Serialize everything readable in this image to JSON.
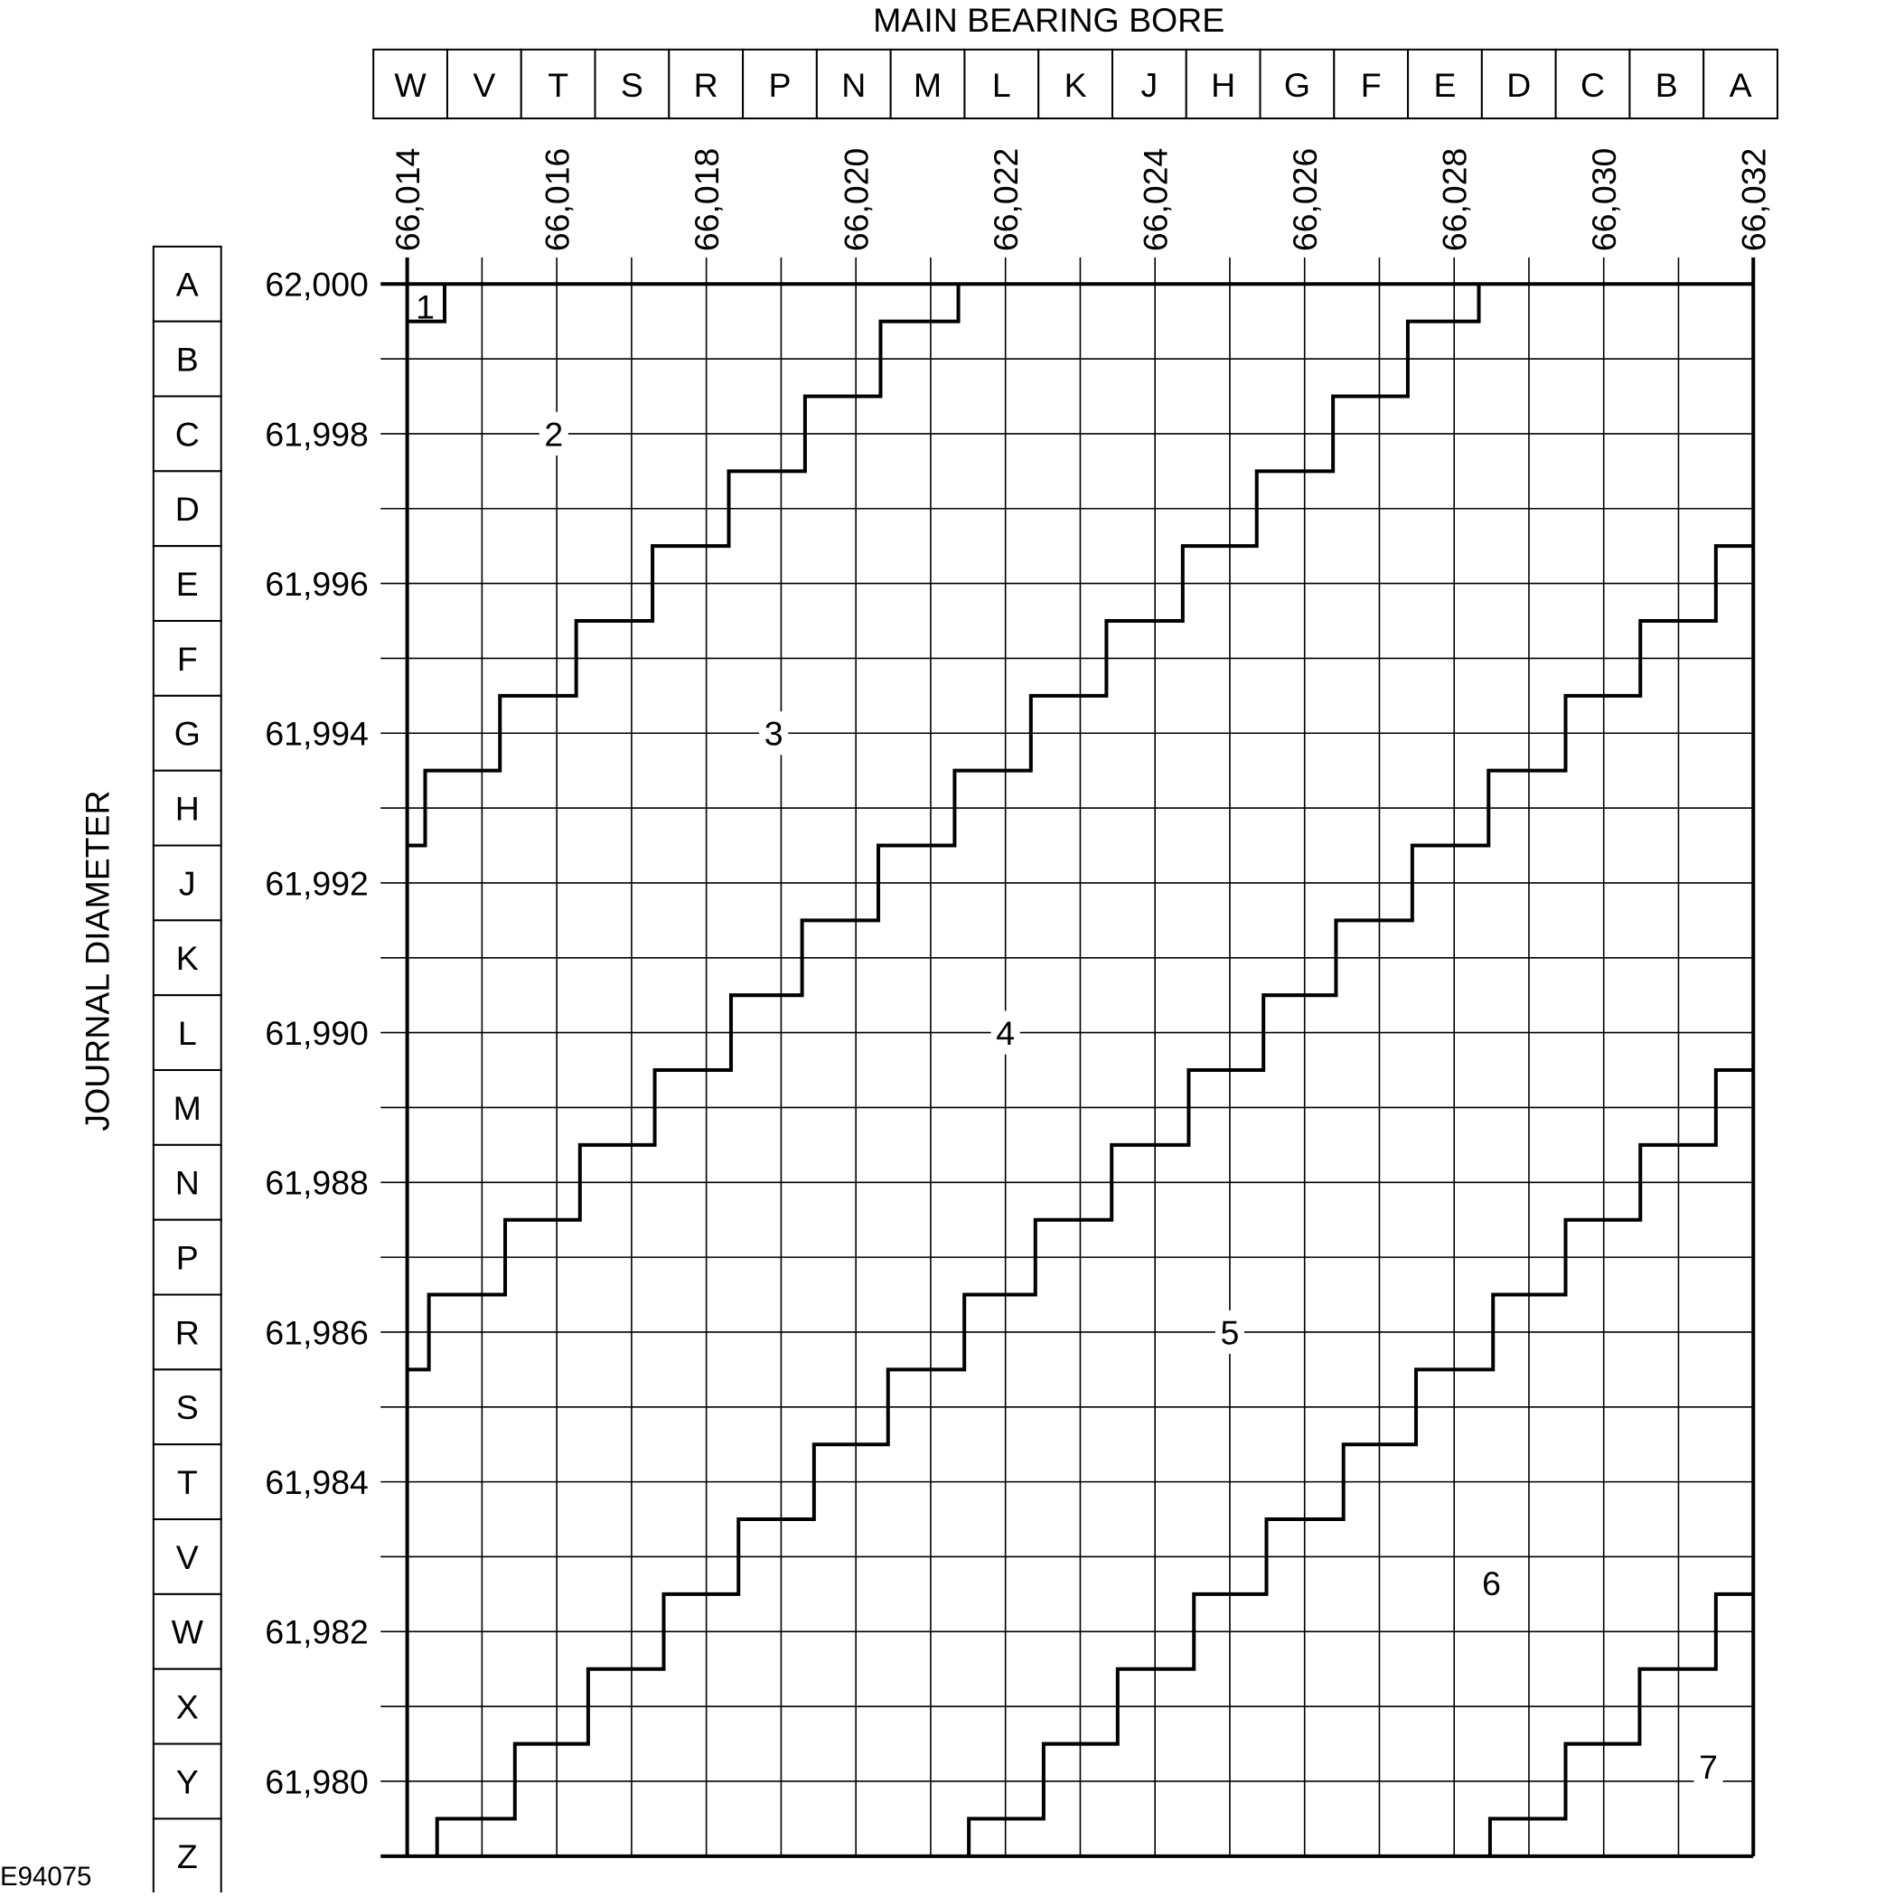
{
  "chart_data": {
    "type": "diagram",
    "title": "MAIN BEARING BORE",
    "xlabel": "MAIN BEARING BORE",
    "ylabel": "JOURNAL DIAMETER",
    "figure_id": "E94075",
    "bore_grades": [
      "W",
      "V",
      "T",
      "S",
      "R",
      "P",
      "N",
      "M",
      "L",
      "K",
      "J",
      "H",
      "G",
      "F",
      "E",
      "D",
      "C",
      "B",
      "A"
    ],
    "journal_grades": [
      "A",
      "B",
      "C",
      "D",
      "E",
      "F",
      "G",
      "H",
      "J",
      "K",
      "L",
      "M",
      "N",
      "P",
      "R",
      "S",
      "T",
      "V",
      "W",
      "X",
      "Y",
      "Z"
    ],
    "x_ticks": [
      "66,014",
      "66,016",
      "66,018",
      "66,020",
      "66,022",
      "66,024",
      "66,026",
      "66,028",
      "66,030",
      "66,032"
    ],
    "y_ticks": [
      "62,000",
      "61,998",
      "61,996",
      "61,994",
      "61,992",
      "61,990",
      "61,988",
      "61,986",
      "61,984",
      "61,982",
      "61,980"
    ],
    "xlim": [
      66.014,
      66.032
    ],
    "ylim": [
      61.979,
      62.0
    ],
    "grid": true,
    "boundaries": [
      {
        "start": 66.014,
        "risers": [
          66.0145
        ],
        "levels": [
          61.9995,
          62.0
        ]
      },
      {
        "start": 66.014,
        "risers": [
          66.01424,
          66.01524,
          66.01626,
          66.01728,
          66.0183,
          66.01932,
          66.02033,
          66.02137
        ],
        "levels": [
          61.9925,
          61.9935,
          61.9945,
          61.9955,
          61.9965,
          61.9975,
          61.9985,
          61.9995,
          62.0
        ]
      },
      {
        "start": 66.014,
        "risers": [
          66.01429,
          66.01531,
          66.01631,
          66.01731,
          66.01833,
          66.01928,
          66.0203,
          66.02132,
          66.02234,
          66.02335,
          66.02437,
          66.02536,
          66.02638,
          66.02738,
          66.02833
        ],
        "levels": [
          61.9855,
          61.9865,
          61.9875,
          61.9885,
          61.9895,
          61.9905,
          61.9915,
          61.9925,
          61.9935,
          61.9945,
          61.9955,
          61.9965,
          61.9975,
          61.9985,
          61.9995,
          62.0
        ]
      },
      {
        "start": 66.0144,
        "end": 66.032,
        "risers": [
          66.0144,
          66.01544,
          66.01642,
          66.01743,
          66.01843,
          66.01944,
          66.02043,
          66.02145,
          66.0224,
          66.02342,
          66.02445,
          66.02545,
          66.02642,
          66.02744,
          66.02846,
          66.02949,
          66.03049,
          66.0315
        ],
        "levels": [
          61.979,
          61.9795,
          61.9805,
          61.9815,
          61.9825,
          61.9835,
          61.9845,
          61.9855,
          61.9865,
          61.9875,
          61.9885,
          61.9895,
          61.9905,
          61.9915,
          61.9925,
          61.9935,
          61.9945,
          61.9955,
          61.9965
        ]
      },
      {
        "start": 66.02151,
        "end": 66.032,
        "risers": [
          66.02151,
          66.02251,
          66.0235,
          66.02452,
          66.02549,
          66.02652,
          66.02749,
          66.02852,
          66.02949,
          66.03049,
          66.0315
        ],
        "levels": [
          61.979,
          61.9795,
          61.9805,
          61.9815,
          61.9825,
          61.9835,
          61.9845,
          61.9855,
          61.9865,
          61.9875,
          61.9885,
          61.9895
        ]
      },
      {
        "start": 66.02848,
        "end": 66.032,
        "risers": [
          66.02848,
          66.02949,
          66.03048,
          66.0315
        ],
        "levels": [
          61.979,
          61.9795,
          61.9805,
          61.9815,
          61.9825
        ]
      }
    ],
    "zones": [
      {
        "label": "1",
        "bore": 66.01424,
        "journal": 61.9997
      },
      {
        "label": "2",
        "bore": 66.01596,
        "journal": 61.998
      },
      {
        "label": "3",
        "bore": 66.0189,
        "journal": 61.994
      },
      {
        "label": "4",
        "bore": 66.022,
        "journal": 61.99
      },
      {
        "label": "5",
        "bore": 66.025,
        "journal": 61.986
      },
      {
        "label": "6",
        "bore": 66.0285,
        "journal": 61.98265
      },
      {
        "label": "7",
        "bore": 66.0314,
        "journal": 61.9802
      }
    ]
  }
}
